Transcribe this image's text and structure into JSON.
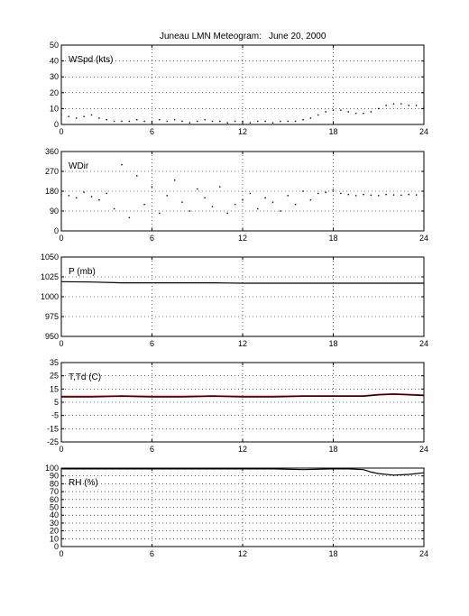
{
  "figure": {
    "title": "Juneau LMN Meteogram:",
    "date": "June 20, 2000"
  },
  "chart_data": [
    {
      "type": "scatter",
      "label": "WSpd (kts)",
      "xlim": [
        0,
        24
      ],
      "ylim": [
        0,
        50
      ],
      "xticks": [
        0,
        6,
        12,
        18,
        24
      ],
      "yticks": [
        0,
        10,
        20,
        30,
        40,
        50
      ],
      "grid": true,
      "series": [
        {
          "color": "#000000",
          "x": [
            0,
            0.5,
            1,
            1.5,
            2,
            2.5,
            3,
            3.5,
            4,
            4.5,
            5,
            5.5,
            6,
            6.5,
            7,
            7.5,
            8,
            8.5,
            9,
            9.5,
            10,
            10.5,
            11,
            11.5,
            12,
            12.5,
            13,
            13.5,
            14,
            14.5,
            15,
            15.5,
            16,
            16.5,
            17,
            17.5,
            18,
            18.5,
            19,
            19.5,
            20,
            20.5,
            21,
            21.5,
            22,
            22.5,
            23,
            23.5,
            24
          ],
          "y": [
            6,
            5,
            4,
            5,
            6,
            4,
            3,
            2,
            2,
            2,
            3,
            2,
            2,
            3,
            2,
            3,
            2,
            1,
            2,
            3,
            2,
            2,
            1,
            2,
            2,
            1,
            2,
            2,
            1,
            2,
            2,
            2,
            3,
            4,
            6,
            8,
            9,
            9,
            8,
            7,
            7,
            8,
            10,
            12,
            13,
            13,
            12,
            12,
            11
          ]
        }
      ]
    },
    {
      "type": "scatter",
      "label": "WDir",
      "xlim": [
        0,
        24
      ],
      "ylim": [
        0,
        360
      ],
      "xticks": [
        0,
        6,
        12,
        18,
        24
      ],
      "yticks": [
        0,
        90,
        180,
        270,
        360
      ],
      "grid": true,
      "series": [
        {
          "color": "#000000",
          "x": [
            0,
            0.5,
            1,
            1.5,
            2,
            2.5,
            3,
            3.5,
            4,
            4.5,
            5,
            5.5,
            6,
            6.5,
            7,
            7.5,
            8,
            8.5,
            9,
            9.5,
            10,
            10.5,
            11,
            11.5,
            12,
            12.5,
            13,
            13.5,
            14,
            14.5,
            15,
            15.5,
            16,
            16.5,
            17,
            17.5,
            18,
            18.5,
            19,
            19.5,
            20,
            20.5,
            21,
            21.5,
            22,
            22.5,
            23,
            23.5,
            24
          ],
          "y": [
            165,
            160,
            150,
            175,
            155,
            140,
            170,
            100,
            300,
            60,
            250,
            120,
            200,
            80,
            160,
            230,
            130,
            90,
            190,
            150,
            110,
            200,
            80,
            120,
            140,
            170,
            100,
            150,
            130,
            90,
            160,
            120,
            180,
            140,
            170,
            175,
            185,
            170,
            165,
            160,
            165,
            162,
            160,
            165,
            163,
            162,
            165,
            163,
            162
          ]
        }
      ]
    },
    {
      "type": "line",
      "label": "P (mb)",
      "xlim": [
        0,
        24
      ],
      "ylim": [
        950,
        1050
      ],
      "xticks": [
        0,
        6,
        12,
        18,
        24
      ],
      "yticks": [
        950,
        975,
        1000,
        1025,
        1050
      ],
      "grid": true,
      "series": [
        {
          "color": "#000000",
          "x": [
            0,
            2,
            4,
            6,
            8,
            10,
            12,
            14,
            16,
            18,
            20,
            22,
            24
          ],
          "y": [
            1019,
            1018.5,
            1017.5,
            1017.5,
            1017.5,
            1017.5,
            1017,
            1017,
            1017,
            1017,
            1017,
            1017,
            1017
          ]
        }
      ]
    },
    {
      "type": "line",
      "label": "T,Td (C)",
      "xlim": [
        0,
        24
      ],
      "ylim": [
        -25,
        35
      ],
      "xticks": [
        0,
        6,
        12,
        18,
        24
      ],
      "yticks": [
        -25,
        -15,
        -5,
        5,
        15,
        25,
        35
      ],
      "grid": true,
      "series": [
        {
          "color": "#ff0000",
          "x": [
            0,
            2,
            4,
            6,
            8,
            10,
            12,
            14,
            16,
            18,
            20,
            21,
            22,
            23,
            24
          ],
          "y": [
            9.5,
            9.5,
            10,
            9.5,
            9.5,
            10,
            9.5,
            9.5,
            10,
            10,
            10,
            11,
            11.5,
            11,
            10.5
          ]
        },
        {
          "color": "#000000",
          "x": [
            0,
            2,
            4,
            6,
            8,
            10,
            12,
            14,
            16,
            18,
            20,
            21,
            22,
            23,
            24
          ],
          "y": [
            9,
            9,
            9.5,
            9,
            9,
            9.5,
            9,
            9,
            9.5,
            9.5,
            9.5,
            10.5,
            11,
            10.5,
            10
          ]
        }
      ]
    },
    {
      "type": "line",
      "label": "RH (%)",
      "xlim": [
        0,
        24
      ],
      "ylim": [
        0,
        100
      ],
      "xticks": [
        0,
        6,
        12,
        18,
        24
      ],
      "yticks": [
        0,
        10,
        20,
        30,
        40,
        50,
        60,
        70,
        80,
        90,
        100
      ],
      "grid": true,
      "series": [
        {
          "color": "#000000",
          "x": [
            0,
            2,
            4,
            6,
            8,
            10,
            12,
            14,
            16,
            18,
            19,
            20,
            20.5,
            21,
            22,
            23,
            24
          ],
          "y": [
            99,
            99,
            99,
            99,
            99,
            99,
            99,
            99,
            98,
            99,
            99,
            98,
            95,
            93,
            91,
            92,
            94
          ]
        }
      ]
    }
  ]
}
